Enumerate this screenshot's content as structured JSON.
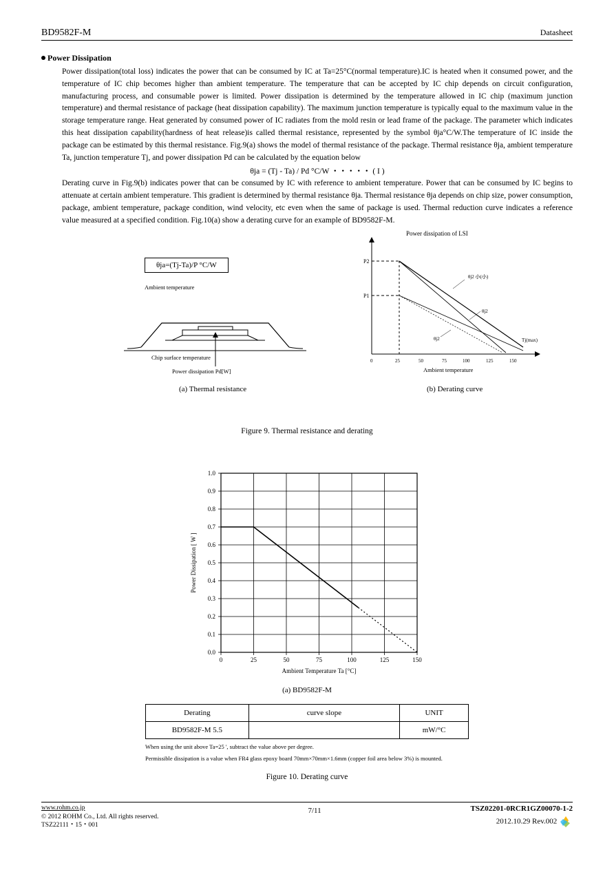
{
  "header": {
    "left": "BD9582F-M",
    "right": "Datasheet"
  },
  "section": {
    "title": "Power Dissipation",
    "para1": "Power dissipation(total loss) indicates the power that can be consumed by IC at Ta=25°C(normal temperature).IC is heated when it consumed power, and the temperature of IC chip becomes higher than ambient temperature. The temperature that can be accepted by IC chip depends on circuit configuration, manufacturing process, and consumable power is limited. Power dissipation is determined by the temperature allowed in IC chip (maximum junction temperature) and thermal resistance of package (heat dissipation capability). The maximum junction temperature is typically equal to the maximum value in the storage temperature range. Heat generated by consumed power of IC radiates from the mold resin or lead frame of the package. The parameter which indicates this heat dissipation capability(hardness of heat release)is called thermal resistance, represented by the symbol            θja°C/W.The temperature of IC inside the package can be estimated by this thermal resistance.  Fig.9(a) shows the model of thermal resistance of the package. Thermal resistance                                            θja, ambient temperature Ta, junction temperature Tj, and power dissipation Pd can be calculated by the equation below",
    "formula": "θja = (Tj - Ta) / Pd          °C/W       ・・・・・ ( I )",
    "para2": "Derating curve in Fig.9(b) indicates power that can be consumed by IC with reference to ambient temperature. Power that can be consumed by IC begins to attenuate at certain ambient temperature. This gradient is determined by thermal resistance        θja. Thermal resistance θja depends on chip size, power consumption, package, ambient temperature, package condition, wind velocity, etc even when the same of package is used. Thermal reduction curve indicates a reference value measured at a specified condition. Fig.10(a) show a derating curve for an example of BD9582F-M."
  },
  "fig9a": {
    "theta_box": "θja=(Tj-Ta)/P  °C/W",
    "label_ambient": "Ambient temperature",
    "label_chip": "Chip surface temperature",
    "label_pd": "Power dissipation Pd[W]",
    "caption": "(a) Thermal resistance"
  },
  "fig9b": {
    "title": "Power dissipation of LSI",
    "xlabel": "Ambient temperature",
    "caption": "(b) Derating curve",
    "x_ticks": [
      "0",
      "25",
      "50",
      "75",
      "100",
      "125",
      "150"
    ],
    "labels": {
      "p1": "P1",
      "p2": "P2",
      "tmax": "Tj(max)",
      "s1": "θj2 小(小)",
      "s2": "θj2",
      "s3": "θj2"
    }
  },
  "fig9_caption": "Figure 9. Thermal resistance and derating",
  "fig10": {
    "type": "line",
    "ylabel": "Power Dissipation [ W ]",
    "xlabel": "Ambient Temperature Ta [°C]",
    "caption_a": "(a) BD9582F-M",
    "xlim": [
      0,
      150
    ],
    "ylim": [
      0,
      1.0
    ],
    "xticks": [
      0,
      25,
      50,
      75,
      100,
      125,
      150
    ],
    "yticks": [
      0.0,
      0.1,
      0.2,
      0.3,
      0.4,
      0.5,
      0.6,
      0.7,
      0.8,
      0.9,
      1.0
    ],
    "solid_line": [
      [
        0,
        0.7
      ],
      [
        25,
        0.7
      ],
      [
        105,
        0.25
      ]
    ],
    "dotted_line": [
      [
        105,
        0.25
      ],
      [
        150,
        0.0
      ]
    ],
    "line_color": "#000000",
    "background": "#ffffff",
    "grid_color": "#000000",
    "axis_fontsize": 9
  },
  "table": {
    "headers": [
      "Derating",
      "curve   slope",
      "UNIT"
    ],
    "row": [
      "BD9582F-M 5.5",
      "",
      "mW/°C"
    ],
    "note1": "When using the unit above Ta=25 ', subtract the value above per degree.",
    "note2": "Permissible dissipation is a value when FR4 glass epoxy board 70mm×70mm×1.6mm (copper foil area below 3%) is mounted."
  },
  "fig10_caption": "Figure 10. Derating curve",
  "footer": {
    "url": "www.rohm.co.jp",
    "copyright": "© 2012 ROHM Co., Ltd. All rights reserved.",
    "tsz1": "TSZ22111・15・001",
    "page": "7/11",
    "doc_id": "TSZ02201-0RCR1GZ00070-1-2",
    "date": "2012.10.29 Rev.002"
  }
}
